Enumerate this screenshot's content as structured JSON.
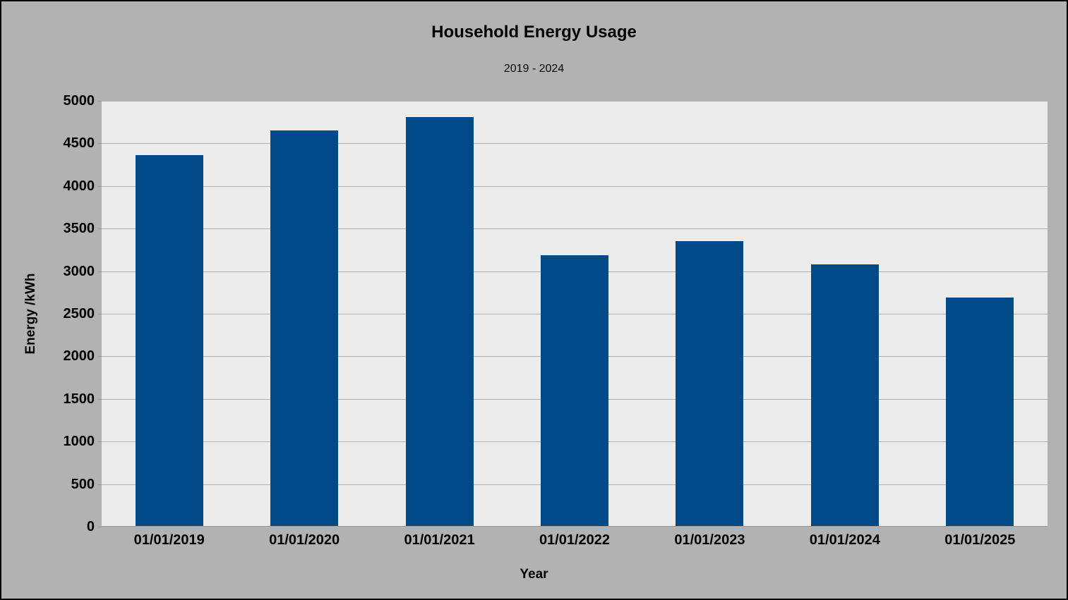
{
  "window": {
    "background_color": "#b2b2b2",
    "border_color": "#000000"
  },
  "chart_data": {
    "type": "bar",
    "title": "Household Energy Usage",
    "subtitle": "2019 - 2024",
    "xlabel": "Year",
    "ylabel": "Energy /kWh",
    "categories": [
      "01/01/2019",
      "01/01/2020",
      "01/01/2021",
      "01/01/2022",
      "01/01/2023",
      "01/01/2024",
      "01/01/2025"
    ],
    "values": [
      4360,
      4650,
      4810,
      3190,
      3350,
      3080,
      2690
    ],
    "ylim": [
      0,
      5000
    ],
    "ytick_step": 500,
    "ytick_labels": [
      "0",
      "500",
      "1000",
      "1500",
      "2000",
      "2500",
      "3000",
      "3500",
      "4000",
      "4500",
      "5000"
    ],
    "grid": "horizontal",
    "legend_position": "none",
    "colors": {
      "bar": "#004a87",
      "plot_background": "#ececec",
      "gridline": "#b3b3b3",
      "axis_line": "#9b9b9b",
      "text": "#000000"
    }
  }
}
